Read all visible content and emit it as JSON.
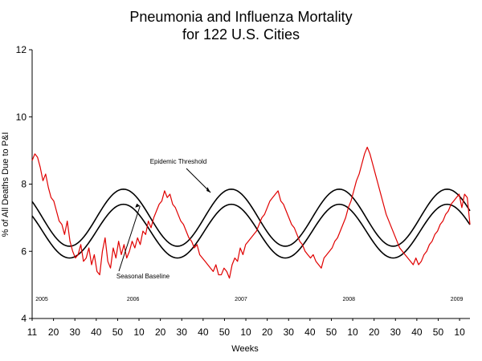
{
  "chart_data": {
    "type": "line",
    "title": "Pneumonia and Influenza Mortality",
    "subtitle": "for 122 U.S. Cities",
    "xlabel": "Weeks",
    "ylabel": "% of All Deaths Due to P&I",
    "ylim": [
      4,
      12
    ],
    "y_ticks": [
      4,
      6,
      8,
      10,
      12
    ],
    "x_tick_labels": [
      "11",
      "20",
      "30",
      "40",
      "50",
      "10",
      "20",
      "30",
      "40",
      "50",
      "10",
      "20",
      "30",
      "40",
      "50",
      "10",
      "20",
      "30",
      "40",
      "50",
      "10"
    ],
    "year_labels": [
      {
        "label": "2005",
        "week_index": 0
      },
      {
        "label": "2006",
        "week_index": 44
      },
      {
        "label": "2007",
        "week_index": 96
      },
      {
        "label": "2008",
        "week_index": 148
      },
      {
        "label": "2009",
        "week_index": 200
      }
    ],
    "grid": false,
    "colors": {
      "observed": "#e00000",
      "threshold": "#000000",
      "baseline": "#000000"
    },
    "annotations": [
      {
        "text": "Epidemic Threshold",
        "target_week": 86,
        "target_value": 7.75
      },
      {
        "text": "Seasonal Baseline",
        "target_week": 52,
        "target_value": 7.35
      }
    ],
    "series": [
      {
        "key": "observed",
        "values": [
          8.7,
          8.9,
          8.8,
          8.5,
          8.1,
          8.3,
          7.9,
          7.6,
          7.5,
          7.2,
          6.9,
          6.8,
          6.5,
          6.9,
          6.3,
          6.0,
          5.8,
          5.9,
          6.2,
          5.7,
          5.8,
          6.1,
          5.6,
          5.9,
          5.4,
          5.3,
          6.0,
          6.4,
          5.7,
          5.5,
          6.1,
          5.8,
          6.3,
          5.9,
          6.2,
          5.8,
          6.0,
          6.3,
          6.1,
          6.4,
          6.2,
          6.6,
          6.5,
          6.9,
          6.7,
          7.0,
          7.2,
          7.4,
          7.5,
          7.8,
          7.6,
          7.7,
          7.4,
          7.3,
          7.1,
          6.9,
          6.8,
          6.6,
          6.4,
          6.3,
          6.1,
          6.2,
          5.9,
          5.8,
          5.7,
          5.6,
          5.5,
          5.4,
          5.6,
          5.3,
          5.3,
          5.5,
          5.4,
          5.2,
          5.6,
          5.8,
          5.7,
          6.1,
          5.9,
          6.2,
          6.3,
          6.4,
          6.5,
          6.6,
          6.8,
          7.0,
          7.1,
          7.3,
          7.5,
          7.6,
          7.7,
          7.8,
          7.5,
          7.4,
          7.2,
          7.0,
          6.8,
          6.7,
          6.5,
          6.3,
          6.2,
          6.0,
          5.9,
          5.8,
          5.9,
          5.7,
          5.6,
          5.5,
          5.8,
          5.9,
          6.0,
          6.1,
          6.3,
          6.4,
          6.6,
          6.8,
          7.0,
          7.3,
          7.5,
          7.8,
          8.1,
          8.3,
          8.6,
          8.9,
          9.1,
          8.9,
          8.6,
          8.3,
          8.0,
          7.7,
          7.4,
          7.1,
          6.9,
          6.7,
          6.5,
          6.3,
          6.1,
          6.0,
          5.9,
          5.8,
          5.7,
          5.6,
          5.8,
          5.6,
          5.7,
          5.9,
          6.0,
          6.2,
          6.3,
          6.5,
          6.6,
          6.8,
          6.9,
          7.1,
          7.2,
          7.4,
          7.5,
          7.6,
          7.7,
          7.3,
          7.7,
          7.6,
          6.8
        ]
      },
      {
        "key": "threshold",
        "values": []
      },
      {
        "key": "baseline",
        "values": []
      }
    ],
    "seasonal_model": {
      "threshold": {
        "mean": 7.0,
        "amplitude": 0.85,
        "period_weeks": 52,
        "peak_week_index": 44
      },
      "baseline": {
        "mean": 6.6,
        "amplitude": 0.8,
        "period_weeks": 52,
        "peak_week_index": 44
      }
    }
  }
}
